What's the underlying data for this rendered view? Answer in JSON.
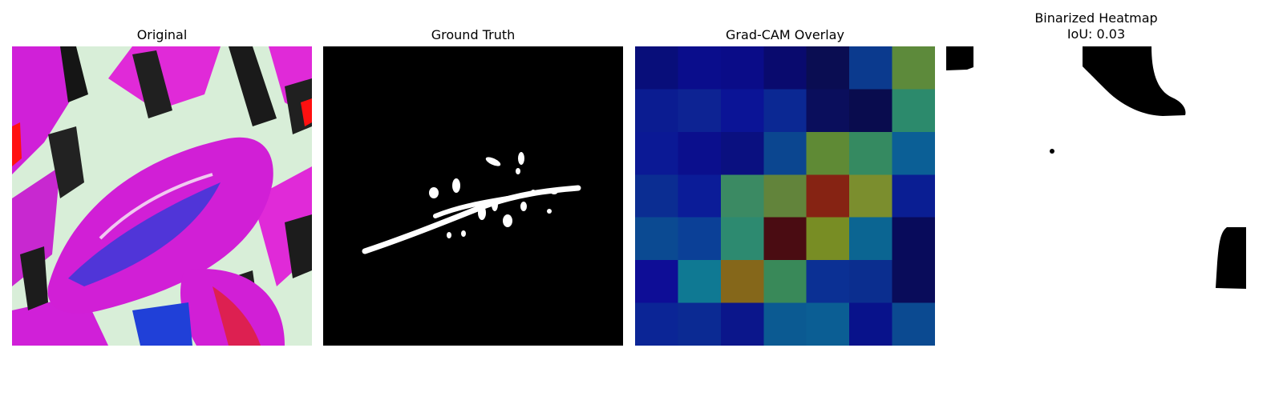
{
  "figure": {
    "panels": [
      {
        "title": "Original"
      },
      {
        "title": "Ground Truth"
      },
      {
        "title": "Grad-CAM Overlay"
      },
      {
        "title": "Binarized Heatmap",
        "subtitle": "IoU: 0.03"
      }
    ]
  },
  "heatmap": {
    "rows": 7,
    "cols": 7,
    "cell_colors": [
      [
        "#080e7a",
        "#0a0d8c",
        "#0a0c88",
        "#090a6e",
        "#0a0d52",
        "#0b3a8e",
        "#5d8a3b"
      ],
      [
        "#0b1c91",
        "#0d2393",
        "#0b1496",
        "#0b2893",
        "#0a0e5c",
        "#090c4e",
        "#2c8a6c"
      ],
      [
        "#0b1995",
        "#0b0f8d",
        "#0a1080",
        "#0b4690",
        "#5f8a35",
        "#358a61",
        "#0b5f96"
      ],
      [
        "#0b2d92",
        "#0b1c98",
        "#3b8a63",
        "#62843b",
        "#862313",
        "#7b8e2e",
        "#0a1e93"
      ],
      [
        "#0b4a92",
        "#0b4097",
        "#2d8a70",
        "#4a0c12",
        "#788d24",
        "#0b6592",
        "#080b5b"
      ],
      [
        "#0e0d96",
        "#0f7993",
        "#85671a",
        "#398959",
        "#0b3094",
        "#0b2e8f",
        "#090c5a"
      ],
      [
        "#0b2596",
        "#0b2a93",
        "#0b168b",
        "#0b5a92",
        "#0b5e94",
        "#08128b",
        "#0b4a91"
      ]
    ]
  }
}
